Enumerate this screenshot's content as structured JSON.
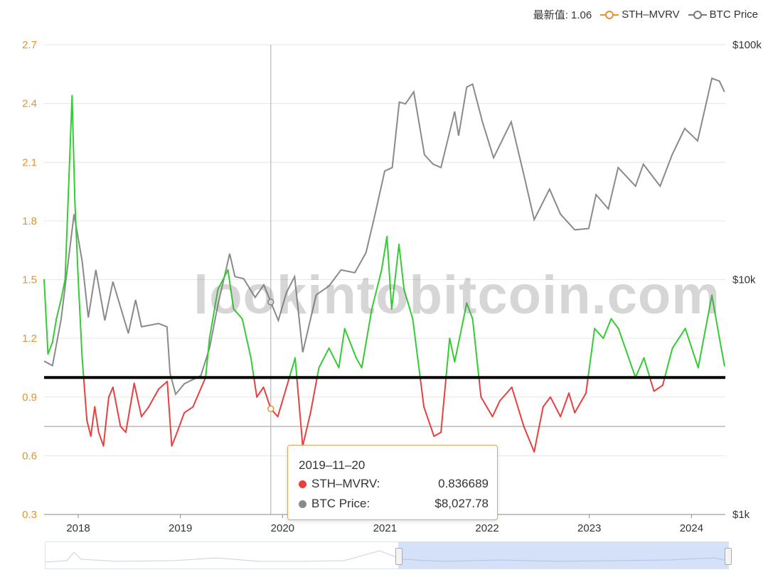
{
  "legend": {
    "latest_label": "最新值: 1.06",
    "series1": "STH–MVRV",
    "series2": "BTC Price"
  },
  "tooltip": {
    "date": "2019–11–20",
    "row1_label": "STH–MVRV:",
    "row1_value": "0.836689",
    "row2_label": "BTC Price:",
    "row2_value": "$8,027.78"
  },
  "watermark": "lookintobitcoin.com",
  "colors": {
    "above": "#33cc33",
    "below": "#e84040",
    "price": "#8a8a8a",
    "baseline": "#000000",
    "axis_left": "#e8912e",
    "accent": "#e8a35a"
  },
  "chart_data": {
    "type": "line",
    "title": "",
    "x_ticks": [
      "2018",
      "2019",
      "2020",
      "2021",
      "2022",
      "2023",
      "2024"
    ],
    "left_axis": {
      "ticks": [
        "0.3",
        "0.6",
        "0.9",
        "1.2",
        "1.5",
        "1.8",
        "2.1",
        "2.4",
        "2.7"
      ],
      "range": [
        0.3,
        2.7
      ]
    },
    "right_axis": {
      "ticks": [
        "$1k",
        "$10k",
        "$100k"
      ],
      "scale": "log",
      "range": [
        1000,
        100000
      ]
    },
    "baseline": 1.0,
    "reference_line": 0.75,
    "crosshair_date": "2019-11-20",
    "x_range": [
      "2017-09-01",
      "2024-05-01"
    ],
    "series": [
      {
        "name": "STH–MVRV",
        "axis": "left",
        "points": [
          [
            "2017-09-01",
            1.5
          ],
          [
            "2017-09-15",
            1.12
          ],
          [
            "2017-10-01",
            1.18
          ],
          [
            "2017-10-15",
            1.3
          ],
          [
            "2017-11-01",
            1.4
          ],
          [
            "2017-11-15",
            1.5
          ],
          [
            "2017-12-01",
            2.1
          ],
          [
            "2017-12-10",
            2.44
          ],
          [
            "2017-12-20",
            1.9
          ],
          [
            "2018-01-01",
            1.5
          ],
          [
            "2018-01-15",
            1.1
          ],
          [
            "2018-02-01",
            0.78
          ],
          [
            "2018-02-15",
            0.7
          ],
          [
            "2018-03-01",
            0.85
          ],
          [
            "2018-03-15",
            0.72
          ],
          [
            "2018-04-01",
            0.65
          ],
          [
            "2018-04-20",
            0.9
          ],
          [
            "2018-05-05",
            0.95
          ],
          [
            "2018-06-01",
            0.75
          ],
          [
            "2018-06-20",
            0.72
          ],
          [
            "2018-07-20",
            0.97
          ],
          [
            "2018-08-15",
            0.8
          ],
          [
            "2018-09-10",
            0.85
          ],
          [
            "2018-10-15",
            0.94
          ],
          [
            "2018-11-15",
            0.98
          ],
          [
            "2018-12-01",
            0.65
          ],
          [
            "2018-12-15",
            0.7
          ],
          [
            "2019-01-15",
            0.82
          ],
          [
            "2019-02-15",
            0.85
          ],
          [
            "2019-04-01",
            1.0
          ],
          [
            "2019-04-15",
            1.2
          ],
          [
            "2019-05-15",
            1.45
          ],
          [
            "2019-06-20",
            1.55
          ],
          [
            "2019-07-10",
            1.35
          ],
          [
            "2019-08-10",
            1.3
          ],
          [
            "2019-09-10",
            1.1
          ],
          [
            "2019-10-01",
            0.9
          ],
          [
            "2019-10-25",
            0.95
          ],
          [
            "2019-11-20",
            0.84
          ],
          [
            "2019-12-15",
            0.8
          ],
          [
            "2020-01-15",
            0.95
          ],
          [
            "2020-02-15",
            1.1
          ],
          [
            "2020-03-13",
            0.65
          ],
          [
            "2020-04-10",
            0.82
          ],
          [
            "2020-05-10",
            1.05
          ],
          [
            "2020-06-15",
            1.15
          ],
          [
            "2020-07-20",
            1.05
          ],
          [
            "2020-08-10",
            1.25
          ],
          [
            "2020-09-20",
            1.1
          ],
          [
            "2020-10-10",
            1.05
          ],
          [
            "2020-11-15",
            1.35
          ],
          [
            "2020-12-20",
            1.55
          ],
          [
            "2021-01-08",
            1.72
          ],
          [
            "2021-01-25",
            1.35
          ],
          [
            "2021-02-20",
            1.68
          ],
          [
            "2021-03-10",
            1.45
          ],
          [
            "2021-04-10",
            1.3
          ],
          [
            "2021-05-20",
            0.85
          ],
          [
            "2021-06-25",
            0.7
          ],
          [
            "2021-07-20",
            0.72
          ],
          [
            "2021-08-20",
            1.2
          ],
          [
            "2021-09-07",
            1.08
          ],
          [
            "2021-10-20",
            1.38
          ],
          [
            "2021-11-10",
            1.3
          ],
          [
            "2021-12-10",
            0.9
          ],
          [
            "2022-01-20",
            0.8
          ],
          [
            "2022-02-15",
            0.88
          ],
          [
            "2022-03-30",
            0.95
          ],
          [
            "2022-05-12",
            0.75
          ],
          [
            "2022-06-18",
            0.62
          ],
          [
            "2022-07-20",
            0.85
          ],
          [
            "2022-08-15",
            0.9
          ],
          [
            "2022-09-20",
            0.8
          ],
          [
            "2022-10-20",
            0.92
          ],
          [
            "2022-11-10",
            0.82
          ],
          [
            "2022-12-20",
            0.92
          ],
          [
            "2023-01-20",
            1.25
          ],
          [
            "2023-02-20",
            1.2
          ],
          [
            "2023-03-20",
            1.3
          ],
          [
            "2023-04-15",
            1.25
          ],
          [
            "2023-06-15",
            1.0
          ],
          [
            "2023-07-15",
            1.1
          ],
          [
            "2023-08-20",
            0.93
          ],
          [
            "2023-09-20",
            0.96
          ],
          [
            "2023-10-25",
            1.15
          ],
          [
            "2023-12-10",
            1.25
          ],
          [
            "2024-01-25",
            1.05
          ],
          [
            "2024-03-14",
            1.42
          ],
          [
            "2024-04-10",
            1.2
          ],
          [
            "2024-04-28",
            1.06
          ]
        ]
      },
      {
        "name": "BTC Price",
        "axis": "right",
        "points": [
          [
            "2017-09-01",
            4500
          ],
          [
            "2017-10-01",
            4300
          ],
          [
            "2017-11-01",
            6800
          ],
          [
            "2017-12-17",
            19000
          ],
          [
            "2018-01-15",
            12000
          ],
          [
            "2018-02-06",
            6900
          ],
          [
            "2018-03-05",
            11000
          ],
          [
            "2018-04-06",
            6700
          ],
          [
            "2018-05-05",
            9800
          ],
          [
            "2018-06-29",
            5900
          ],
          [
            "2018-07-25",
            8200
          ],
          [
            "2018-08-15",
            6300
          ],
          [
            "2018-10-15",
            6500
          ],
          [
            "2018-11-14",
            6300
          ],
          [
            "2018-11-25",
            4000
          ],
          [
            "2018-12-15",
            3250
          ],
          [
            "2019-01-15",
            3600
          ],
          [
            "2019-03-15",
            3900
          ],
          [
            "2019-04-15",
            5100
          ],
          [
            "2019-05-15",
            7800
          ],
          [
            "2019-06-26",
            12900
          ],
          [
            "2019-07-15",
            10300
          ],
          [
            "2019-08-15",
            10100
          ],
          [
            "2019-09-25",
            8400
          ],
          [
            "2019-10-26",
            9500
          ],
          [
            "2019-11-20",
            8028
          ],
          [
            "2019-12-17",
            6700
          ],
          [
            "2020-01-15",
            8800
          ],
          [
            "2020-02-13",
            10300
          ],
          [
            "2020-03-13",
            4900
          ],
          [
            "2020-04-30",
            8600
          ],
          [
            "2020-06-15",
            9400
          ],
          [
            "2020-07-28",
            11000
          ],
          [
            "2020-09-15",
            10700
          ],
          [
            "2020-10-25",
            13000
          ],
          [
            "2020-11-25",
            18600
          ],
          [
            "2020-12-31",
            29000
          ],
          [
            "2021-01-27",
            30000
          ],
          [
            "2021-02-21",
            57000
          ],
          [
            "2021-03-15",
            56000
          ],
          [
            "2021-04-14",
            63000
          ],
          [
            "2021-05-22",
            34000
          ],
          [
            "2021-06-22",
            31000
          ],
          [
            "2021-07-20",
            30000
          ],
          [
            "2021-09-07",
            52000
          ],
          [
            "2021-09-21",
            41000
          ],
          [
            "2021-10-20",
            66000
          ],
          [
            "2021-11-10",
            68000
          ],
          [
            "2021-12-15",
            47000
          ],
          [
            "2022-01-24",
            33000
          ],
          [
            "2022-03-28",
            47000
          ],
          [
            "2022-05-12",
            28000
          ],
          [
            "2022-06-18",
            18000
          ],
          [
            "2022-08-12",
            24300
          ],
          [
            "2022-09-20",
            19000
          ],
          [
            "2022-11-10",
            16300
          ],
          [
            "2022-12-30",
            16500
          ],
          [
            "2023-01-25",
            23000
          ],
          [
            "2023-03-10",
            20000
          ],
          [
            "2023-04-14",
            30000
          ],
          [
            "2023-06-15",
            25000
          ],
          [
            "2023-07-13",
            31000
          ],
          [
            "2023-09-11",
            25000
          ],
          [
            "2023-10-24",
            34000
          ],
          [
            "2023-12-08",
            44000
          ],
          [
            "2024-01-23",
            39000
          ],
          [
            "2024-03-14",
            72000
          ],
          [
            "2024-04-10",
            70000
          ],
          [
            "2024-04-28",
            63000
          ]
        ]
      }
    ]
  }
}
